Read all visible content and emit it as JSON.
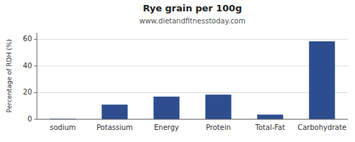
{
  "chart_data": {
    "type": "bar",
    "title": "Rye grain per 100g",
    "subtitle": "www.dietandfitnesstoday.com",
    "categories": [
      "sodium",
      "Potassium",
      "Energy",
      "Protein",
      "Total-Fat",
      "Carbohydrate"
    ],
    "values": [
      0.4,
      11,
      17,
      18.5,
      3.5,
      58.5
    ],
    "color": "#2d4d8e",
    "ylabel": "Percentage of RDH (%)",
    "ylim": [
      0,
      65
    ],
    "yticks": [
      0,
      20,
      40,
      60
    ],
    "grid": true
  }
}
